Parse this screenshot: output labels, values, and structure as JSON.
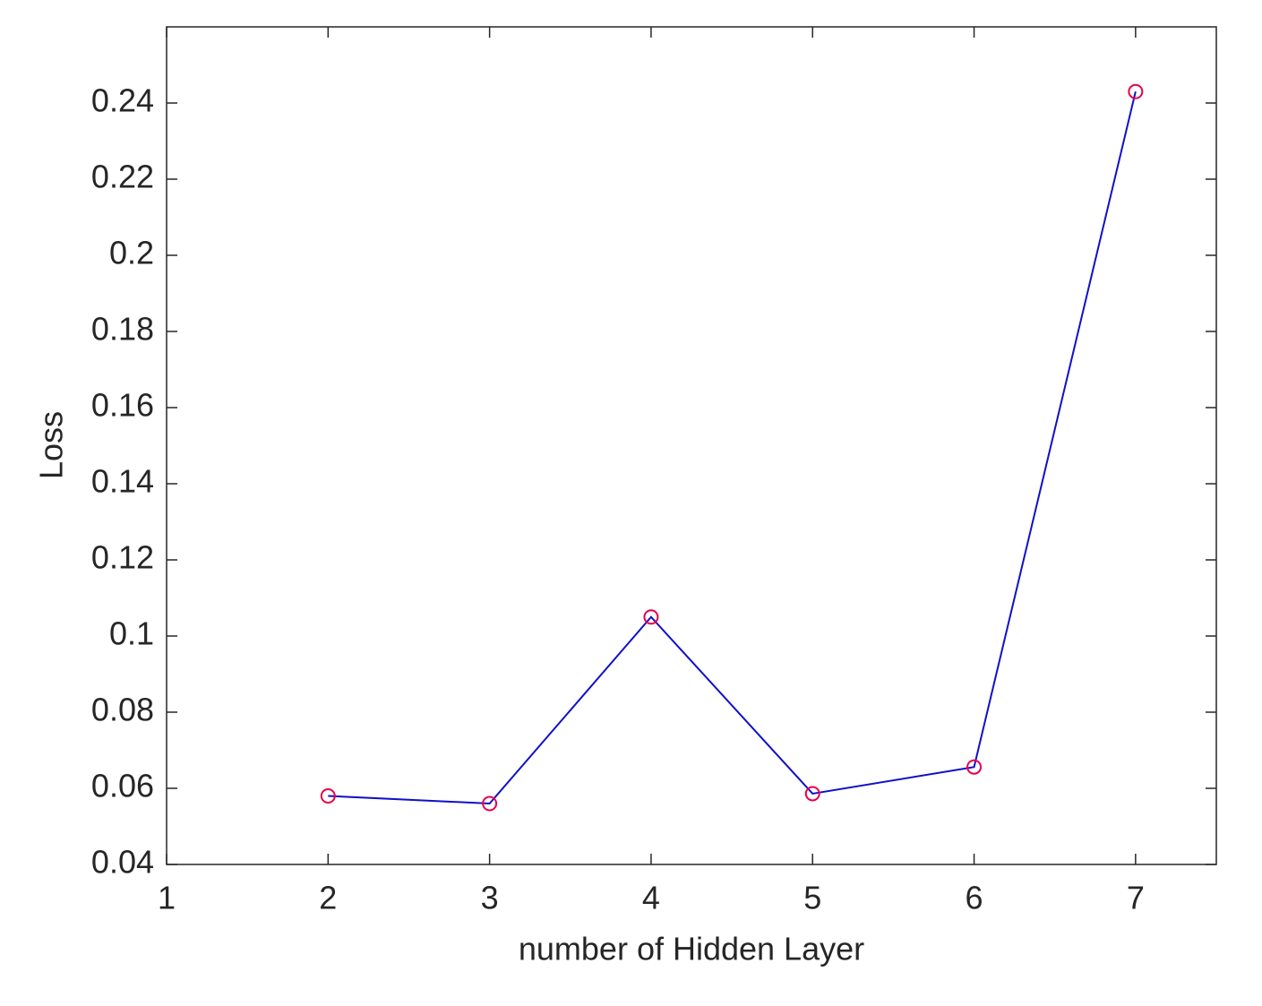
{
  "chart_data": {
    "type": "line",
    "x_label": "number of Hidden Layer",
    "y_label": "Loss",
    "x": [
      2,
      3,
      4,
      5,
      6,
      7
    ],
    "series": [
      {
        "color": "#1010c8",
        "marker_color": "#e8004a",
        "marker": "circle",
        "values": [
          0.058,
          0.056,
          0.105,
          0.0586,
          0.0656,
          0.243
        ]
      }
    ],
    "xlim": [
      1,
      7.5
    ],
    "xticks": [
      1,
      2,
      3,
      4,
      5,
      6,
      7
    ],
    "ylim": [
      0.04,
      0.26
    ],
    "yticks": [
      0.04,
      0.06,
      0.08,
      0.1,
      0.12,
      0.14,
      0.16,
      0.18,
      0.2,
      0.22,
      0.24
    ],
    "grid": false,
    "box": true
  }
}
